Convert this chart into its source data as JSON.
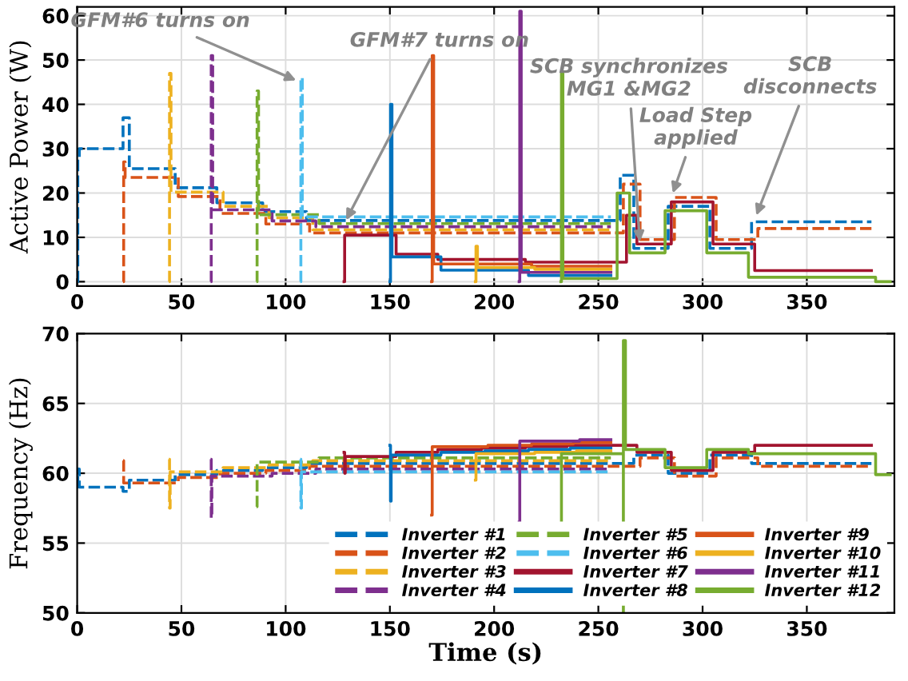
{
  "chart_data": [
    {
      "type": "step",
      "ylabel": "Active Power (W)",
      "xlim": [
        0,
        392
      ],
      "ylim": [
        -1,
        62
      ],
      "xticks": [
        0,
        50,
        100,
        150,
        200,
        250,
        300,
        350
      ],
      "yticks": [
        0,
        10,
        20,
        30,
        40,
        50,
        60
      ],
      "grid": true,
      "legend": false,
      "annotations": [
        {
          "text": "GFM#6 turns on",
          "x": 107,
          "y": 45
        },
        {
          "text": "GFM#7 turns on",
          "x": 128,
          "y": 13
        },
        {
          "text": "SCB synchronizes\nMG1 &MG2",
          "x": 270,
          "y": 8
        },
        {
          "text": "Load Step\napplied",
          "x": 285,
          "y": 19
        },
        {
          "text": "SCB\ndisconnects",
          "x": 325,
          "y": 14
        }
      ],
      "series": [
        {
          "color": "#0072bd",
          "line_style": "dashed",
          "x": [
            0,
            0.3,
            1,
            22,
            25,
            47,
            67,
            89,
            110,
            260.5,
            267,
            283.5,
            303.5,
            323.5,
            381
          ],
          "values": [
            0,
            28,
            30,
            37,
            25.5,
            21.2,
            17.8,
            15.8,
            13.8,
            24,
            7.5,
            17,
            7.5,
            13.5,
            13.5
          ]
        },
        {
          "color": "#d95319",
          "line_style": "dashed",
          "x": [
            22,
            22.3,
            23,
            48.5,
            68.5,
            90.5,
            111.5,
            262,
            270,
            286.5,
            306.5,
            326.5,
            381
          ],
          "values": [
            0,
            27,
            23.5,
            19.2,
            15.4,
            13.0,
            11.0,
            22,
            9.5,
            19,
            9.5,
            12,
            12
          ]
        },
        {
          "color": "#edb120",
          "line_style": "dashed",
          "x": [
            44,
            44.3,
            45,
            70,
            92,
            113,
            256
          ],
          "values": [
            0,
            47,
            20.2,
            17.0,
            14.4,
            11.7,
            11.7
          ]
        },
        {
          "color": "#7e2f8e",
          "line_style": "dashed",
          "x": [
            64,
            64.3,
            65,
            93.5,
            114.5,
            256
          ],
          "values": [
            0,
            51,
            16.2,
            13.7,
            12.4,
            12.4
          ]
        },
        {
          "color": "#77ac30",
          "line_style": "dashed",
          "x": [
            86,
            86.3,
            87,
            116,
            256
          ],
          "values": [
            0,
            43,
            15.1,
            13.1,
            13.1
          ]
        },
        {
          "color": "#4dbeee",
          "line_style": "dashed",
          "x": [
            107,
            107.3,
            108,
            256
          ],
          "values": [
            0,
            46,
            14.6,
            14.6
          ]
        },
        {
          "color": "#a2142f",
          "line_style": "solid",
          "x": [
            128,
            128.3,
            153,
            173,
            215,
            263.5,
            268.5,
            285,
            305,
            325,
            381
          ],
          "values": [
            0,
            10.5,
            6.2,
            5.0,
            4.4,
            15,
            8.5,
            18,
            8.5,
            2.5,
            2.5
          ]
        },
        {
          "color": "#0072bd",
          "line_style": "solid",
          "x": [
            150,
            150.3,
            151,
            174.5,
            216.5,
            256
          ],
          "values": [
            0,
            40,
            5.6,
            2.6,
            1.4,
            1.4
          ]
        },
        {
          "color": "#d95319",
          "line_style": "solid",
          "x": [
            170,
            170.3,
            171,
            218,
            256
          ],
          "values": [
            0,
            51,
            4.0,
            3.5,
            3.5
          ]
        },
        {
          "color": "#edb120",
          "line_style": "solid",
          "x": [
            191,
            191.3,
            192,
            219.5,
            256
          ],
          "values": [
            0,
            8,
            3.2,
            2.8,
            2.8
          ]
        },
        {
          "color": "#7e2f8e",
          "line_style": "solid",
          "x": [
            212,
            212.3,
            213,
            256
          ],
          "values": [
            0,
            61,
            2.1,
            2.1
          ]
        },
        {
          "color": "#77ac30",
          "line_style": "solid",
          "x": [
            232,
            232.3,
            233,
            259,
            265,
            282,
            302,
            322,
            383,
            390
          ],
          "values": [
            0,
            47,
            0.7,
            20,
            6.5,
            16,
            6.5,
            1.0,
            0,
            0
          ]
        }
      ]
    },
    {
      "type": "step",
      "ylabel": "Frequency (Hz)",
      "xlabel": "Time (s)",
      "xlim": [
        0,
        392
      ],
      "ylim": [
        50,
        70
      ],
      "xticks": [
        0,
        50,
        100,
        150,
        200,
        250,
        300,
        350
      ],
      "yticks": [
        50,
        55,
        60,
        65,
        70
      ],
      "grid": true,
      "legend": "bottom right",
      "series": [
        {
          "name": "Inverter #1",
          "color": "#0072bd",
          "line_style": "dashed",
          "x": [
            0,
            0.3,
            1,
            22,
            25,
            47,
            67,
            89,
            110,
            267,
            283.5,
            303.5,
            323.5,
            381
          ],
          "values": [
            59,
            60.3,
            59,
            58.7,
            59.5,
            59.9,
            60.2,
            60.4,
            60.7,
            61.3,
            60,
            61.3,
            60.7,
            60.7
          ]
        },
        {
          "name": "Inverter #2",
          "color": "#d95319",
          "line_style": "dashed",
          "x": [
            22,
            22.3,
            48.5,
            68.5,
            90.5,
            111.5,
            270,
            286.5,
            306.5,
            326.5,
            381
          ],
          "values": [
            60.9,
            59.3,
            59.7,
            60.0,
            60.2,
            60.5,
            61.1,
            59.8,
            61.1,
            60.5,
            60.5
          ]
        },
        {
          "name": "Inverter #3",
          "color": "#edb120",
          "line_style": "dashed",
          "x": [
            44,
            44.3,
            44.6,
            70,
            92,
            113,
            256
          ],
          "values": [
            61,
            57.5,
            60.1,
            60.4,
            60.6,
            60.9,
            60.9
          ]
        },
        {
          "name": "Inverter #4",
          "color": "#7e2f8e",
          "line_style": "dashed",
          "x": [
            64,
            64.3,
            64.6,
            93.5,
            114.5,
            256
          ],
          "values": [
            61,
            56.8,
            59.8,
            60.0,
            60.3,
            60.3
          ]
        },
        {
          "name": "Inverter #5",
          "color": "#77ac30",
          "line_style": "dashed",
          "x": [
            86,
            86.3,
            116,
            256
          ],
          "values": [
            57.6,
            60.8,
            61.1,
            61.1
          ]
        },
        {
          "name": "Inverter #6",
          "color": "#4dbeee",
          "line_style": "dashed",
          "x": [
            107,
            107.3,
            107.6,
            256
          ],
          "values": [
            61,
            57.5,
            60.1,
            60.1
          ]
        },
        {
          "name": "Inverter #7",
          "color": "#a2142f",
          "line_style": "solid",
          "x": [
            128,
            128.3,
            128.6,
            153,
            173,
            194,
            215,
            235,
            268.5,
            285,
            305,
            325,
            381
          ],
          "values": [
            61.5,
            60,
            61.2,
            61.5,
            61.7,
            61.8,
            61.9,
            62.0,
            61.5,
            60.2,
            61.5,
            62.0,
            62.0
          ]
        },
        {
          "name": "Inverter #8",
          "color": "#0072bd",
          "line_style": "solid",
          "x": [
            150,
            150.3,
            150.6,
            174.5,
            195.5,
            216.5,
            236.5,
            256
          ],
          "values": [
            62,
            58,
            61.3,
            61.5,
            61.6,
            61.7,
            61.8,
            61.8
          ]
        },
        {
          "name": "Inverter #9",
          "color": "#d95319",
          "line_style": "solid",
          "x": [
            170,
            170.3,
            197,
            218,
            238,
            256
          ],
          "values": [
            57,
            61.9,
            62.0,
            62.1,
            62.2,
            62.2
          ]
        },
        {
          "name": "Inverter #10",
          "color": "#edb120",
          "line_style": "solid",
          "x": [
            191,
            191.3,
            219.5,
            239.5,
            256
          ],
          "values": [
            59.5,
            61.4,
            61.5,
            61.6,
            61.6
          ]
        },
        {
          "name": "Inverter #11",
          "color": "#7e2f8e",
          "line_style": "solid",
          "x": [
            212,
            212.3,
            241,
            256
          ],
          "values": [
            56.5,
            62.3,
            62.4,
            62.4
          ]
        },
        {
          "name": "Inverter #12",
          "color": "#77ac30",
          "line_style": "solid",
          "x": [
            232,
            232.3,
            262,
            262.01,
            263,
            282,
            302,
            322,
            383,
            390
          ],
          "values": [
            55.5,
            61.4,
            50,
            69.5,
            61.7,
            60.4,
            61.7,
            61.4,
            59.9,
            59.9
          ]
        }
      ]
    }
  ]
}
